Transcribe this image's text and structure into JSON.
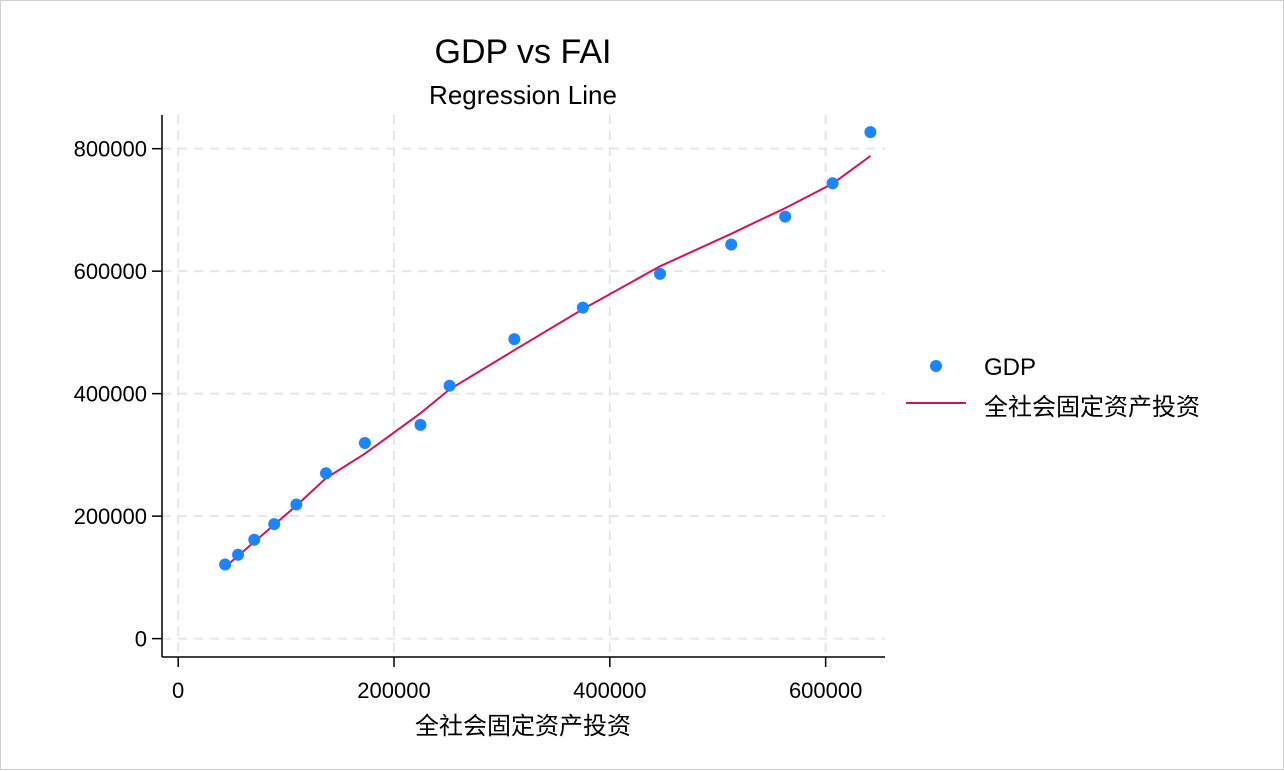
{
  "chart_data": {
    "type": "scatter",
    "title": "GDP vs FAI",
    "subtitle": "Regression Line",
    "xlabel": "全社会固定资产投资",
    "ylabel": "",
    "xlim": [
      -15000,
      655000
    ],
    "ylim": [
      -30000,
      855000
    ],
    "x_ticks": [
      0,
      200000,
      400000,
      600000
    ],
    "y_ticks": [
      0,
      200000,
      400000,
      600000,
      800000
    ],
    "x_tick_labels": [
      "0",
      "200000",
      "400000",
      "600000"
    ],
    "y_tick_labels": [
      "0",
      "200000",
      "400000",
      "600000",
      "800000"
    ],
    "grid": true,
    "legend_position": "right",
    "series": [
      {
        "name": "GDP",
        "kind": "scatter",
        "color": "#1a85ff",
        "points": [
          [
            43500,
            121000
          ],
          [
            55500,
            137000
          ],
          [
            70500,
            161500
          ],
          [
            89000,
            187000
          ],
          [
            109500,
            219000
          ],
          [
            137000,
            270000
          ],
          [
            173000,
            319500
          ],
          [
            224500,
            349000
          ],
          [
            251500,
            413000
          ],
          [
            311500,
            489000
          ],
          [
            375000,
            540500
          ],
          [
            446500,
            595500
          ],
          [
            512500,
            643500
          ],
          [
            562500,
            689000
          ],
          [
            606500,
            743500
          ],
          [
            641500,
            827000
          ]
        ]
      },
      {
        "name": "全社会固定资产投资",
        "kind": "line",
        "color": "#d41159",
        "points": [
          [
            43500,
            117000
          ],
          [
            55500,
            135000
          ],
          [
            70500,
            158000
          ],
          [
            89000,
            186000
          ],
          [
            109500,
            217000
          ],
          [
            137000,
            262000
          ],
          [
            173000,
            302000
          ],
          [
            224500,
            368000
          ],
          [
            251500,
            407000
          ],
          [
            311500,
            471000
          ],
          [
            375000,
            538000
          ],
          [
            446500,
            608000
          ],
          [
            512500,
            661000
          ],
          [
            562500,
            703000
          ],
          [
            606500,
            743000
          ],
          [
            641500,
            788000
          ]
        ]
      }
    ]
  }
}
